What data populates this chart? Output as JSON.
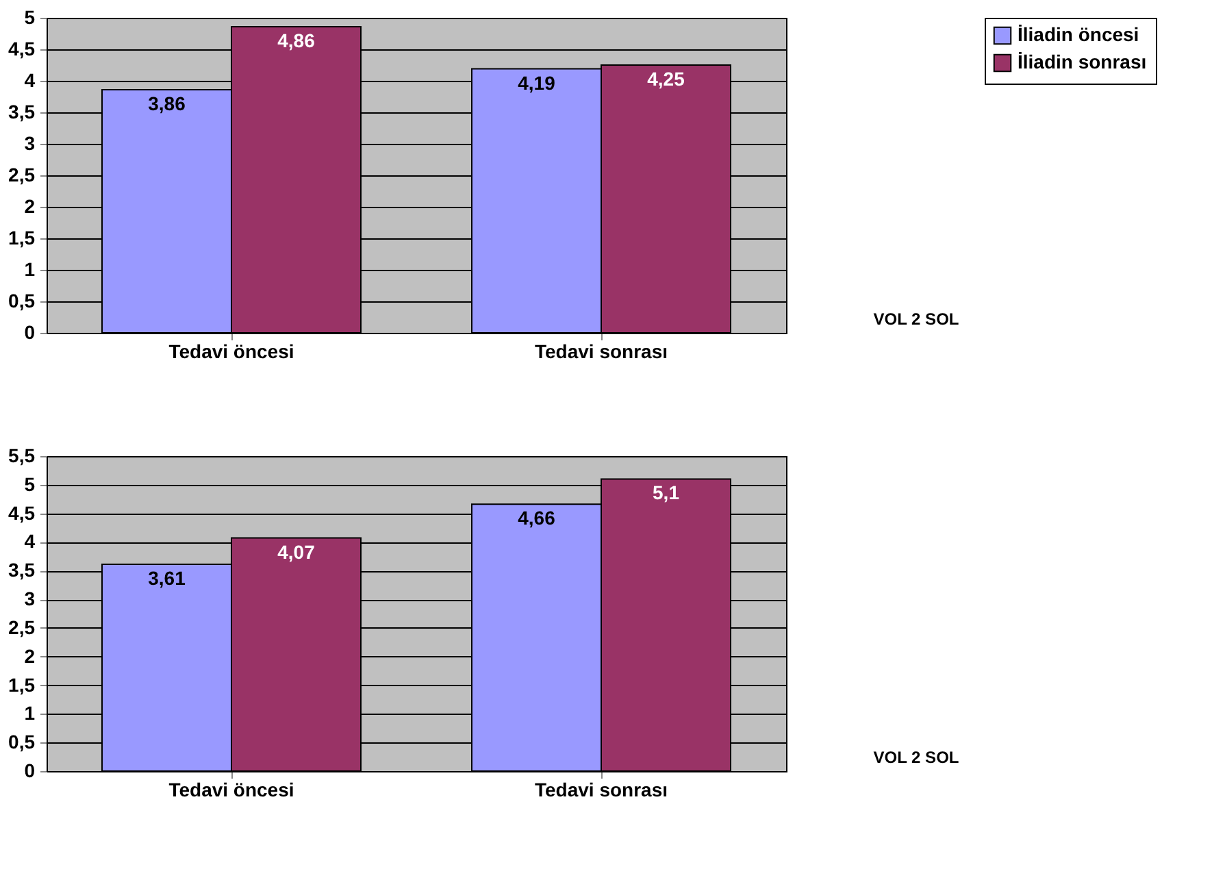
{
  "chart_data": [
    {
      "type": "bar",
      "categories": [
        "Tedavi öncesi",
        "Tedavi sonrası"
      ],
      "series": [
        {
          "name": "İliadin öncesi",
          "color": "#9999ff",
          "values": [
            3.86,
            4.19
          ],
          "value_labels": [
            "3,86",
            "4,19"
          ]
        },
        {
          "name": "İliadin sonrası",
          "color": "#993366",
          "values": [
            4.86,
            4.25
          ],
          "value_labels": [
            "4,86",
            "4,25"
          ]
        }
      ],
      "ylim": [
        0,
        5
      ],
      "yticks": [
        0,
        {
          "value": 0.5,
          "label": "0,5"
        },
        1,
        {
          "value": 1.5,
          "label": "1,5"
        },
        2,
        {
          "value": 2.5,
          "label": "2,5"
        },
        3,
        {
          "value": 3.5,
          "label": "3,5"
        },
        4,
        {
          "value": 4.5,
          "label": "4,5"
        },
        5
      ],
      "grid": "y",
      "legend": "right",
      "annotations": [
        "VOL 2 SOL"
      ]
    },
    {
      "type": "bar",
      "categories": [
        "Tedavi öncesi",
        "Tedavi sonrası"
      ],
      "series": [
        {
          "name": "İliadin öncesi",
          "color": "#9999ff",
          "values": [
            3.61,
            4.66
          ],
          "value_labels": [
            "3,61",
            "4,66"
          ]
        },
        {
          "name": "İliadin sonrası",
          "color": "#993366",
          "values": [
            4.07,
            5.1
          ],
          "value_labels": [
            "4,07",
            "5,1"
          ]
        }
      ],
      "ylim": [
        0,
        5.5
      ],
      "yticks": [
        0,
        {
          "value": 0.5,
          "label": "0,5"
        },
        1,
        {
          "value": 1.5,
          "label": "1,5"
        },
        2,
        {
          "value": 2.5,
          "label": "2,5"
        },
        3,
        {
          "value": 3.5,
          "label": "3,5"
        },
        4,
        {
          "value": 4.5,
          "label": "4,5"
        },
        5,
        {
          "value": 5.5,
          "label": "5,5"
        }
      ],
      "grid": "y",
      "legend": "right",
      "annotations": [
        "VOL 2 SOL"
      ]
    }
  ]
}
